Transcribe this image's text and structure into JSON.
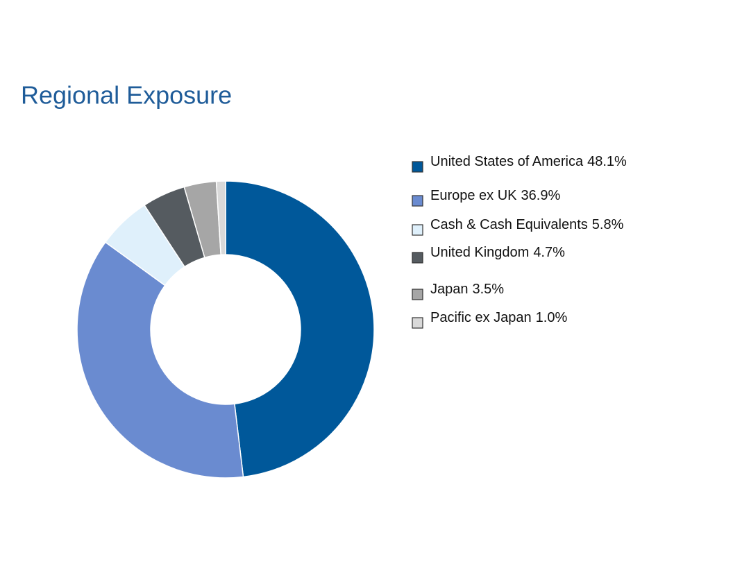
{
  "chart_data": {
    "type": "donut",
    "title": "Regional Exposure",
    "categories": [
      "United States of America",
      "Europe ex UK",
      "Cash & Cash Equivalents",
      "United Kingdom",
      "Japan",
      "Pacific ex Japan"
    ],
    "values": [
      48.1,
      36.9,
      5.8,
      4.7,
      3.5,
      1.0
    ],
    "value_labels": [
      "48.1%",
      "36.9%",
      "5.8%",
      "4.7%",
      "3.5%",
      "1.0%"
    ],
    "colors": [
      "#00589a",
      "#6a8bd0",
      "#dff0fb",
      "#555b60",
      "#a6a6a6",
      "#d9d9d9"
    ]
  }
}
